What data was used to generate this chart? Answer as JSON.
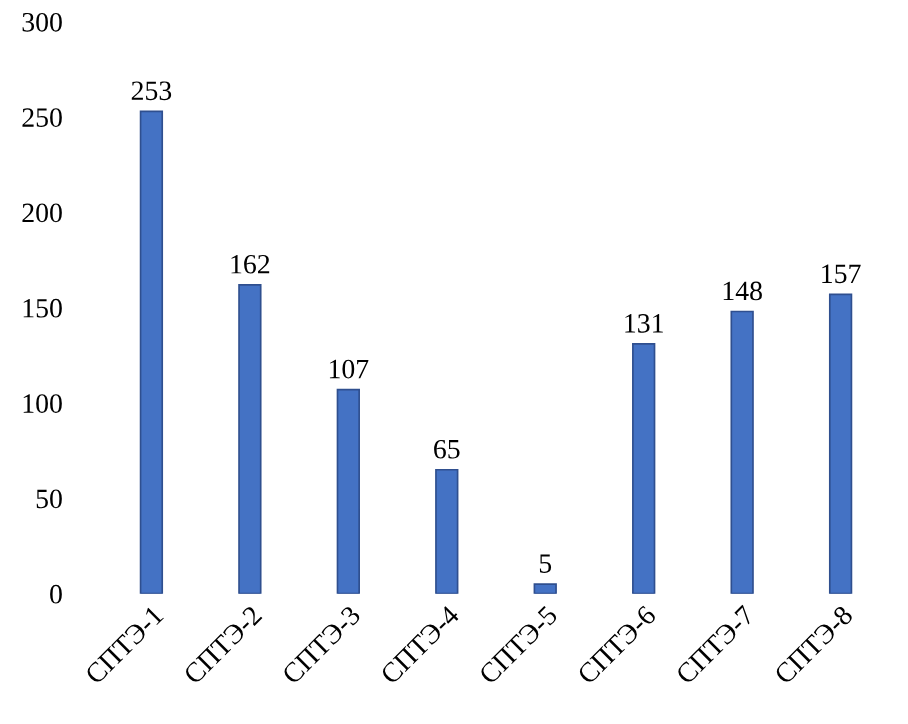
{
  "chart_data": {
    "type": "bar",
    "categories": [
      "СПТЭ-1",
      "СПТЭ-2",
      "СПТЭ-3",
      "СПТЭ-4",
      "СПТЭ-5",
      "СПТЭ-6",
      "СПТЭ-7",
      "СПТЭ-8"
    ],
    "values": [
      253,
      162,
      107,
      65,
      5,
      131,
      148,
      157
    ],
    "color": "#4472c4",
    "ylim": [
      0,
      300
    ],
    "yticks": [
      0,
      50,
      100,
      150,
      200,
      250,
      300
    ],
    "data_labels": true,
    "grid": false
  }
}
